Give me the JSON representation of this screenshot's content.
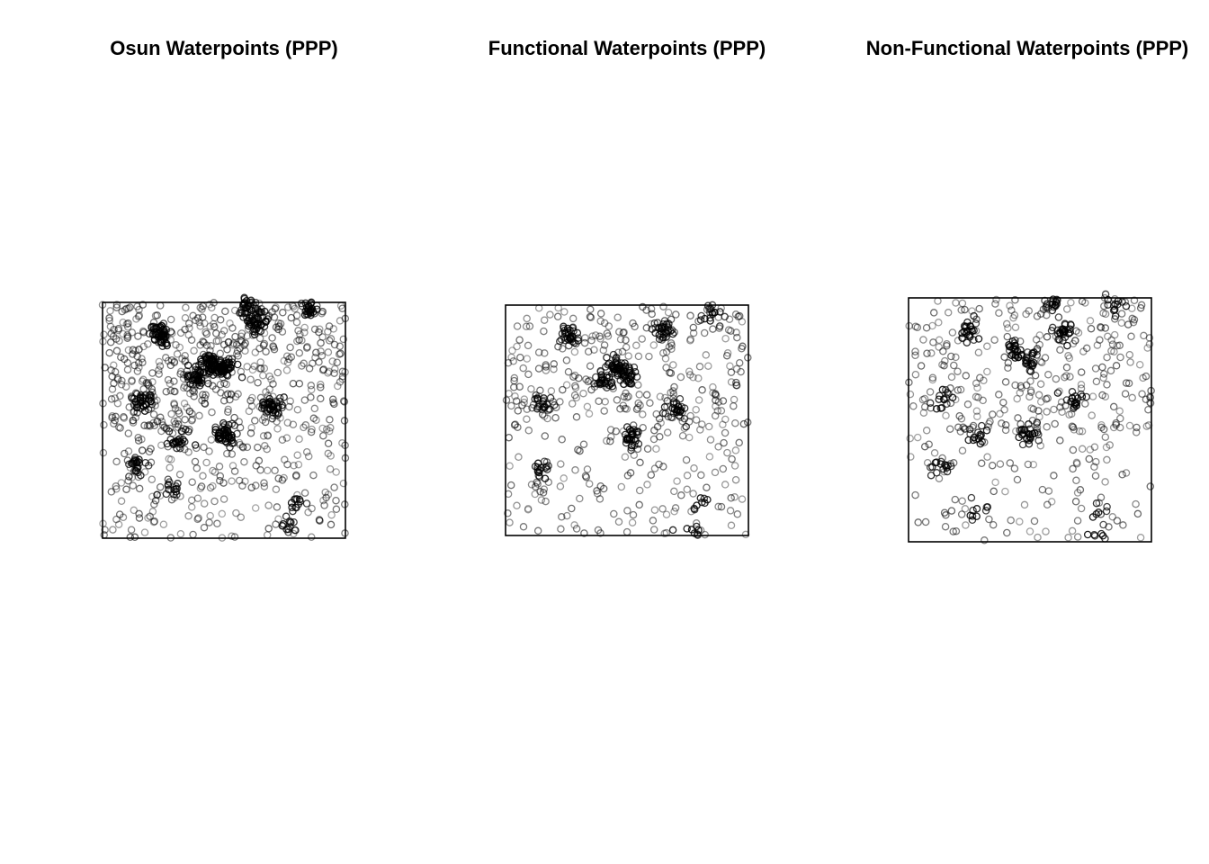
{
  "chart_data": [
    {
      "type": "scatter",
      "title": "Osun Waterpoints (PPP)",
      "marker": "open-circle",
      "point_color": "#000000",
      "point_alpha_range": [
        0.35,
        0.9
      ],
      "grid": false,
      "legend": "none",
      "axes": "none",
      "clusters": [
        {
          "x": 0.24,
          "y": 0.86,
          "n": 55
        },
        {
          "x": 0.44,
          "y": 0.74,
          "n": 60
        },
        {
          "x": 0.5,
          "y": 0.72,
          "n": 50
        },
        {
          "x": 0.39,
          "y": 0.68,
          "n": 40
        },
        {
          "x": 0.64,
          "y": 0.92,
          "n": 45
        },
        {
          "x": 0.6,
          "y": 0.98,
          "n": 30
        },
        {
          "x": 0.85,
          "y": 0.97,
          "n": 25
        },
        {
          "x": 0.16,
          "y": 0.58,
          "n": 35
        },
        {
          "x": 0.7,
          "y": 0.56,
          "n": 40
        },
        {
          "x": 0.51,
          "y": 0.44,
          "n": 50
        },
        {
          "x": 0.31,
          "y": 0.42,
          "n": 25
        },
        {
          "x": 0.14,
          "y": 0.31,
          "n": 25
        },
        {
          "x": 0.28,
          "y": 0.2,
          "n": 15
        },
        {
          "x": 0.8,
          "y": 0.15,
          "n": 12
        },
        {
          "x": 0.77,
          "y": 0.05,
          "n": 12
        }
      ],
      "background_points": 700
    },
    {
      "type": "scatter",
      "title": "Functional Waterpoints (PPP)",
      "marker": "open-circle",
      "point_color": "#000000",
      "point_alpha_range": [
        0.35,
        0.9
      ],
      "grid": false,
      "legend": "none",
      "axes": "none",
      "clusters": [
        {
          "x": 0.26,
          "y": 0.86,
          "n": 35
        },
        {
          "x": 0.45,
          "y": 0.73,
          "n": 35
        },
        {
          "x": 0.5,
          "y": 0.7,
          "n": 30
        },
        {
          "x": 0.4,
          "y": 0.67,
          "n": 25
        },
        {
          "x": 0.65,
          "y": 0.89,
          "n": 28
        },
        {
          "x": 0.85,
          "y": 0.96,
          "n": 15
        },
        {
          "x": 0.15,
          "y": 0.57,
          "n": 22
        },
        {
          "x": 0.7,
          "y": 0.55,
          "n": 28
        },
        {
          "x": 0.52,
          "y": 0.42,
          "n": 30
        },
        {
          "x": 0.15,
          "y": 0.29,
          "n": 15
        },
        {
          "x": 0.8,
          "y": 0.13,
          "n": 8
        },
        {
          "x": 0.77,
          "y": 0.03,
          "n": 8
        }
      ],
      "background_points": 420
    },
    {
      "type": "scatter",
      "title": "Non-Functional Waterpoints (PPP)",
      "marker": "open-circle",
      "point_color": "#000000",
      "point_alpha_range": [
        0.35,
        0.9
      ],
      "grid": false,
      "legend": "none",
      "axes": "none",
      "clusters": [
        {
          "x": 0.25,
          "y": 0.86,
          "n": 22
        },
        {
          "x": 0.43,
          "y": 0.78,
          "n": 22
        },
        {
          "x": 0.49,
          "y": 0.74,
          "n": 26
        },
        {
          "x": 0.63,
          "y": 0.86,
          "n": 28
        },
        {
          "x": 0.6,
          "y": 0.97,
          "n": 18
        },
        {
          "x": 0.85,
          "y": 0.97,
          "n": 12
        },
        {
          "x": 0.14,
          "y": 0.59,
          "n": 15
        },
        {
          "x": 0.69,
          "y": 0.58,
          "n": 20
        },
        {
          "x": 0.49,
          "y": 0.44,
          "n": 26
        },
        {
          "x": 0.28,
          "y": 0.43,
          "n": 15
        },
        {
          "x": 0.12,
          "y": 0.31,
          "n": 15
        },
        {
          "x": 0.28,
          "y": 0.13,
          "n": 10
        },
        {
          "x": 0.81,
          "y": 0.14,
          "n": 7
        },
        {
          "x": 0.77,
          "y": 0.04,
          "n": 7
        }
      ],
      "background_points": 380
    }
  ]
}
